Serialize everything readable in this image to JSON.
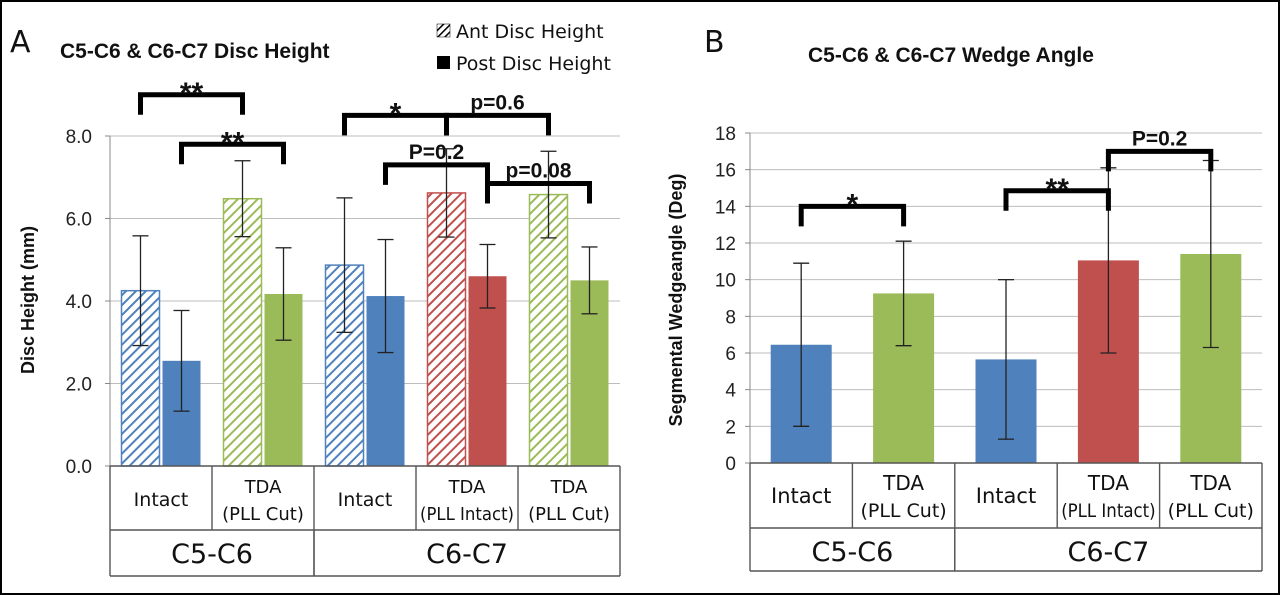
{
  "colors": {
    "intact": "#4f81bd",
    "pll_intact": "#c0504d",
    "pll_cut": "#9bbb59",
    "error_bar": "#222222",
    "bracket": "#000000"
  },
  "chart_data": [
    {
      "panel": "A",
      "type": "bar",
      "title": "C5-C6 & C6-C7 Disc Height",
      "ylabel": "Disc Height (mm)",
      "ylim": [
        0,
        8
      ],
      "yticks": [
        "0.0",
        "2.0",
        "4.0",
        "6.0",
        "8.0"
      ],
      "grid": true,
      "legend": [
        {
          "label": "Ant Disc Height",
          "pattern": "hatched"
        },
        {
          "label": "Post Disc Height",
          "pattern": "solid"
        }
      ],
      "categories": [
        {
          "line1": "Intact",
          "line2": "",
          "color": "intact"
        },
        {
          "line1": "TDA",
          "line2": "(PLL Cut)",
          "color": "pll_cut"
        },
        {
          "line1": "Intact",
          "line2": "",
          "color": "intact"
        },
        {
          "line1": "TDA",
          "line2": "(PLL Intact)",
          "color": "pll_intact"
        },
        {
          "line1": "TDA",
          "line2": "(PLL Cut)",
          "color": "pll_cut"
        }
      ],
      "groups": [
        {
          "label": "C5-C6",
          "span": [
            0,
            1
          ]
        },
        {
          "label": "C6-C7",
          "span": [
            2,
            4
          ]
        }
      ],
      "series": [
        {
          "name": "Ant Disc Height",
          "values": [
            4.25,
            6.48,
            4.87,
            6.62,
            6.58
          ],
          "error": [
            1.33,
            0.92,
            1.63,
            1.07,
            1.05
          ]
        },
        {
          "name": "Post Disc Height",
          "values": [
            2.55,
            4.17,
            4.12,
            4.6,
            4.5
          ],
          "error": [
            1.22,
            1.12,
            1.37,
            0.77,
            0.81
          ]
        }
      ],
      "annotations": [
        {
          "text": "**",
          "bar_from": [
            0,
            0
          ],
          "bar_to": [
            1,
            0
          ],
          "level": 9.0
        },
        {
          "text": "**",
          "bar_from": [
            0,
            1
          ],
          "bar_to": [
            1,
            1
          ],
          "level": 7.8
        },
        {
          "text": "*",
          "bar_from": [
            2,
            0
          ],
          "bar_to": [
            3,
            0
          ],
          "level": 8.5
        },
        {
          "text": "p=0.6",
          "bar_from": [
            3,
            0
          ],
          "bar_to": [
            4,
            0
          ],
          "level": 8.5
        },
        {
          "text": "P=0.2",
          "bar_from": [
            2,
            1
          ],
          "bar_to": [
            3,
            1
          ],
          "level": 7.3
        },
        {
          "text": "p=0.08",
          "bar_from": [
            3,
            1
          ],
          "bar_to": [
            4,
            1
          ],
          "level": 6.85
        }
      ]
    },
    {
      "panel": "B",
      "type": "bar",
      "title": "C5-C6 & C6-C7 Wedge Angle",
      "ylabel": "Segmental Wedgeangle (Deg)",
      "ylim": [
        0,
        18
      ],
      "yticks": [
        "0",
        "2",
        "4",
        "6",
        "8",
        "10",
        "12",
        "14",
        "16",
        "18"
      ],
      "grid": true,
      "categories": [
        {
          "line1": "Intact",
          "line2": "",
          "color": "intact"
        },
        {
          "line1": "TDA",
          "line2": "(PLL Cut)",
          "color": "pll_cut"
        },
        {
          "line1": "Intact",
          "line2": "",
          "color": "intact"
        },
        {
          "line1": "TDA",
          "line2": "(PLL Intact)",
          "color": "pll_intact"
        },
        {
          "line1": "TDA",
          "line2": "(PLL Cut)",
          "color": "pll_cut"
        }
      ],
      "groups": [
        {
          "label": "C5-C6",
          "span": [
            0,
            1
          ]
        },
        {
          "label": "C6-C7",
          "span": [
            2,
            4
          ]
        }
      ],
      "series": [
        {
          "name": "",
          "values": [
            6.45,
            9.25,
            5.65,
            11.05,
            11.4
          ],
          "error": [
            4.45,
            2.85,
            4.35,
            5.05,
            5.1
          ]
        }
      ],
      "annotations": [
        {
          "text": "*",
          "bar_from": [
            0,
            0
          ],
          "bar_to": [
            1,
            0
          ],
          "level": 14.0
        },
        {
          "text": "**",
          "bar_from": [
            2,
            0
          ],
          "bar_to": [
            3,
            0
          ],
          "level": 14.85
        },
        {
          "text": "P=0.2",
          "bar_from": [
            3,
            0
          ],
          "bar_to": [
            4,
            0
          ],
          "level": 17.0
        }
      ]
    }
  ]
}
